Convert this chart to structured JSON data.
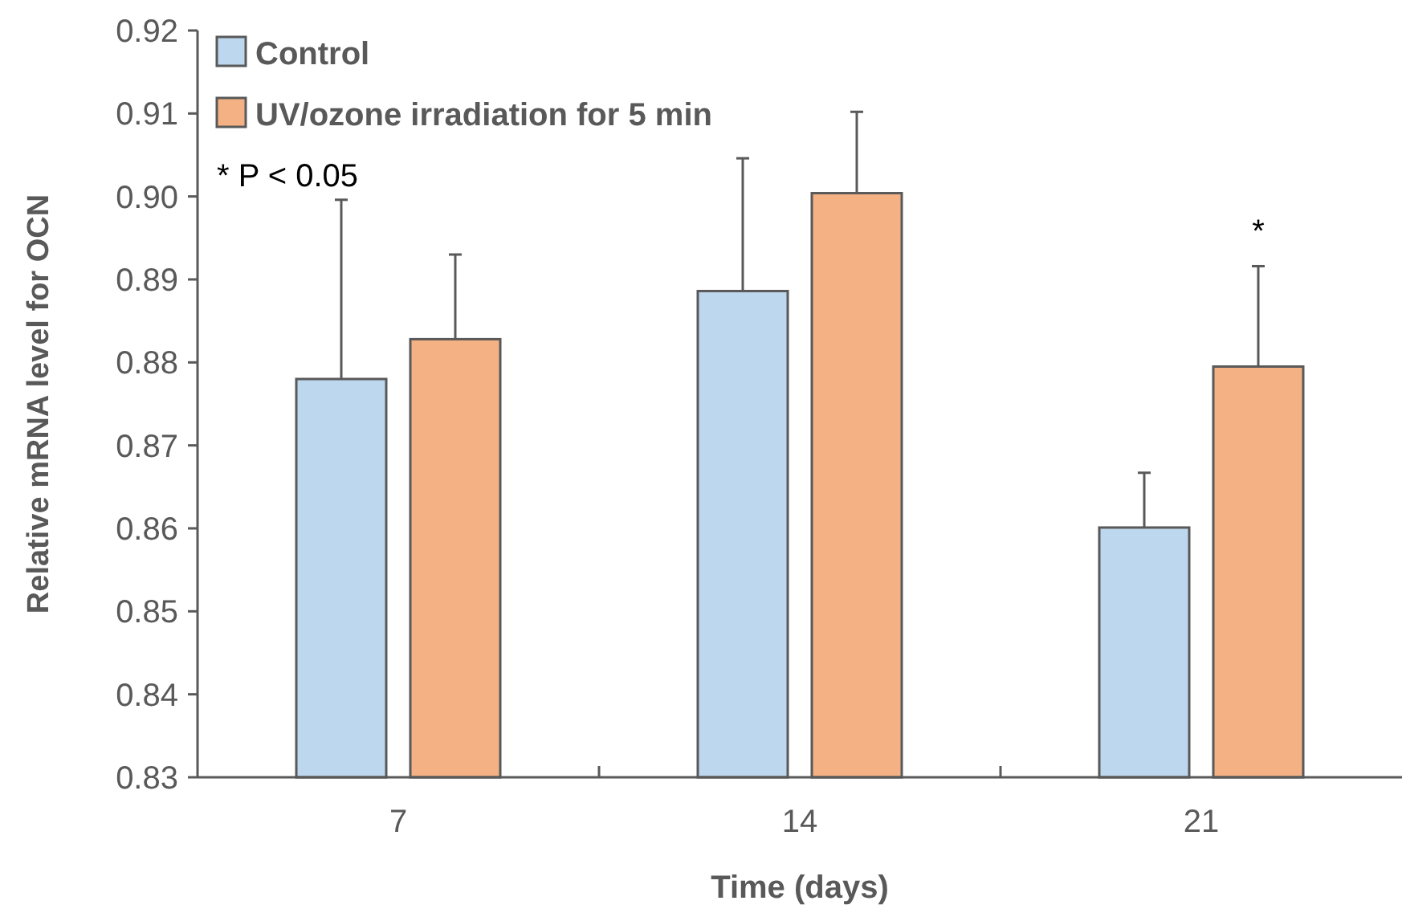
{
  "chart_data": {
    "type": "bar",
    "xlabel": "Time (days)",
    "ylabel": "Relative mRNA level for OCN",
    "categories": [
      "7",
      "14",
      "21"
    ],
    "series": [
      {
        "name": "Control",
        "color": "#bdd7ee",
        "values": [
          0.878,
          0.8886,
          0.8601
        ],
        "errors": [
          0.0216,
          0.016,
          0.0066
        ]
      },
      {
        "name": "UV/ozone irradiation for 5 min",
        "color": "#f4b183",
        "values": [
          0.8828,
          0.9004,
          0.8795
        ],
        "errors": [
          0.0102,
          0.0098,
          0.0121
        ]
      }
    ],
    "ylim": [
      0.83,
      0.92
    ],
    "yticks": [
      0.83,
      0.84,
      0.85,
      0.86,
      0.87,
      0.88,
      0.89,
      {
        "value": 0.9,
        "label": "0.90"
      },
      0.91,
      0.92
    ],
    "annotations": [
      "* P < 0.05",
      "*"
    ],
    "legend": "top left",
    "grid": false
  }
}
